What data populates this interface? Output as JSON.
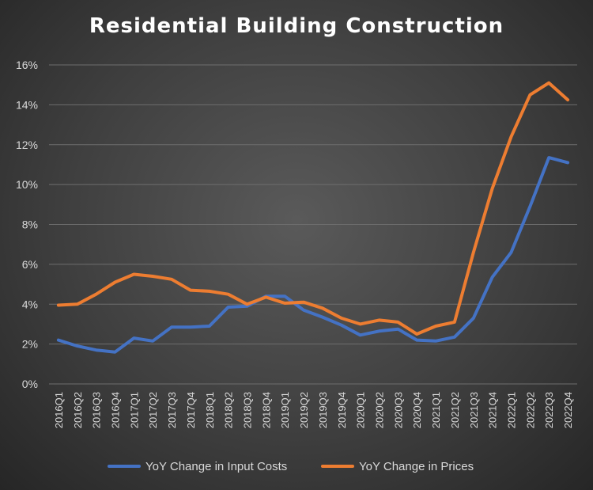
{
  "chart_data": {
    "type": "line",
    "title": "Residential Building Construction",
    "xlabel": "",
    "ylabel": "",
    "ylim": [
      0,
      16
    ],
    "yticks": [
      "0%",
      "2%",
      "4%",
      "6%",
      "8%",
      "10%",
      "12%",
      "14%",
      "16%"
    ],
    "ytick_values": [
      0,
      2,
      4,
      6,
      8,
      10,
      12,
      14,
      16
    ],
    "grid": true,
    "legend": "bottom",
    "categories": [
      "2016Q1",
      "2016Q2",
      "2016Q3",
      "2016Q4",
      "2017Q1",
      "2017Q2",
      "2017Q3",
      "2017Q4",
      "2018Q1",
      "2018Q2",
      "2018Q3",
      "2018Q4",
      "2019Q1",
      "2019Q2",
      "2019Q3",
      "2019Q4",
      "2020Q1",
      "2020Q2",
      "2020Q3",
      "2020Q4",
      "2021Q1",
      "2021Q2",
      "2021Q3",
      "2021Q4",
      "2022Q1",
      "2022Q2",
      "2022Q3",
      "2022Q4"
    ],
    "series": [
      {
        "name": "YoY Change in Input Costs",
        "color": "#4472c4",
        "values": [
          2.2,
          1.9,
          1.7,
          1.6,
          2.3,
          2.15,
          2.85,
          2.85,
          2.9,
          3.85,
          3.9,
          4.4,
          4.4,
          3.7,
          3.35,
          2.95,
          2.45,
          2.65,
          2.75,
          2.2,
          2.15,
          2.35,
          3.3,
          5.35,
          6.6,
          8.9,
          11.35,
          11.1
        ]
      },
      {
        "name": "YoY Change in Prices",
        "color": "#ed7d31",
        "values": [
          3.95,
          4.0,
          4.5,
          5.1,
          5.5,
          5.4,
          5.25,
          4.7,
          4.65,
          4.5,
          4.0,
          4.35,
          4.05,
          4.1,
          3.8,
          3.3,
          3.0,
          3.2,
          3.1,
          2.5,
          2.9,
          3.1,
          6.6,
          9.8,
          12.4,
          14.5,
          15.1,
          14.25
        ]
      }
    ]
  }
}
